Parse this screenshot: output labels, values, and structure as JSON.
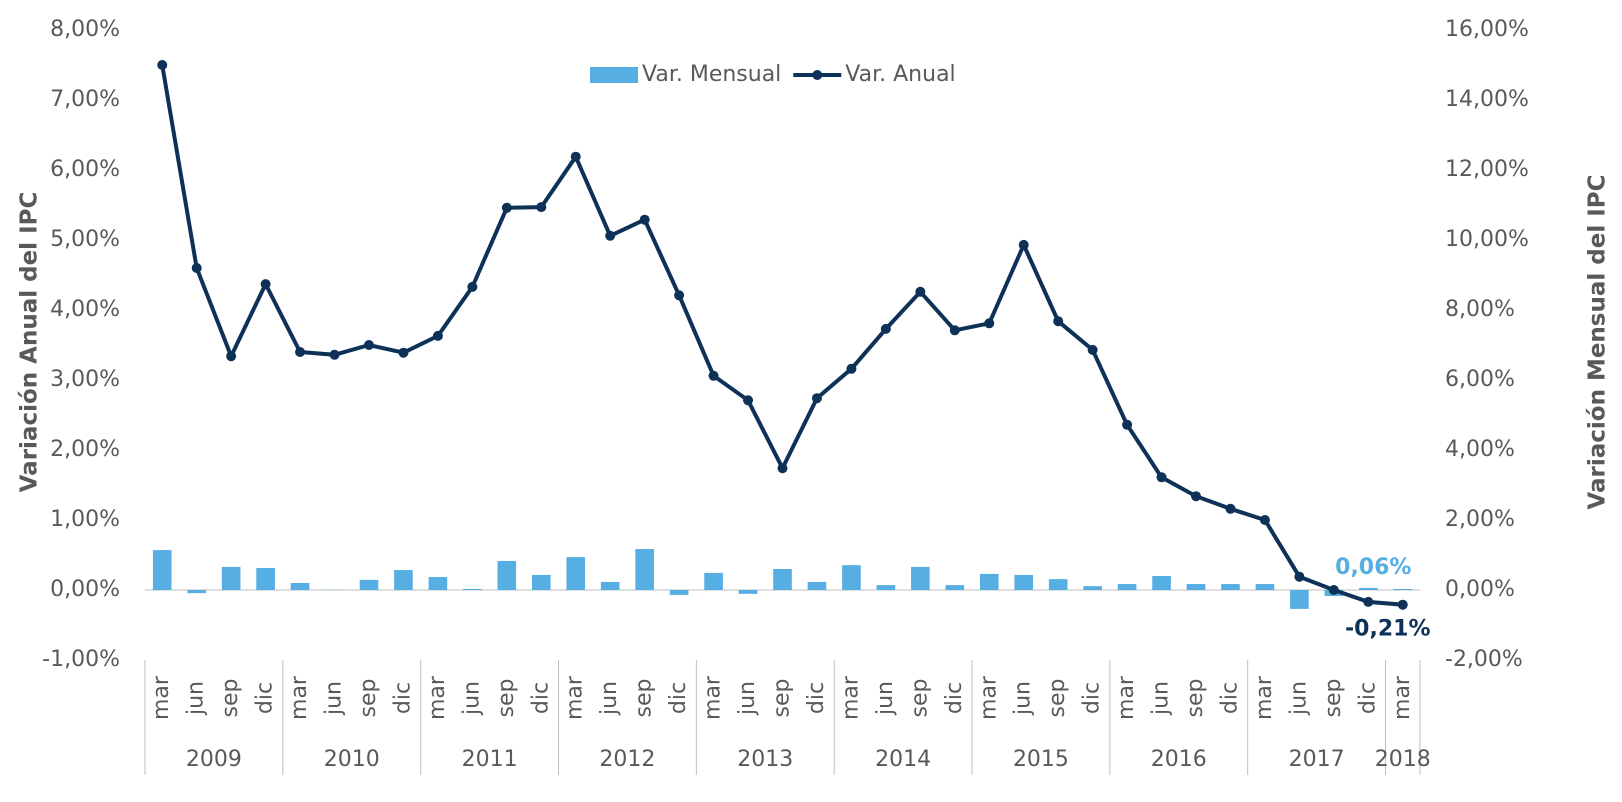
{
  "chart_data": {
    "type": "bar_line",
    "categories": [
      "mar",
      "jun",
      "sep",
      "dic",
      "mar",
      "jun",
      "sep",
      "dic",
      "mar",
      "jun",
      "sep",
      "dic",
      "mar",
      "jun",
      "sep",
      "dic",
      "mar",
      "jun",
      "sep",
      "dic",
      "mar",
      "jun",
      "sep",
      "dic",
      "mar",
      "jun",
      "sep",
      "dic",
      "mar",
      "jun",
      "sep",
      "dic",
      "mar",
      "jun",
      "sep",
      "dic",
      "mar"
    ],
    "year_groups": [
      "2009",
      "2010",
      "2011",
      "2012",
      "2013",
      "2014",
      "2015",
      "2016",
      "2017",
      "2018"
    ],
    "y_label": "Variación Anual del IPC",
    "y2_label": "Variación Mensual del IPC",
    "ylim": [
      -1,
      8
    ],
    "yticks": [
      {
        "value": -1,
        "label": "-1,00%"
      },
      {
        "value": 0,
        "label": "0,00%"
      },
      {
        "value": 1,
        "label": "1,00%"
      },
      {
        "value": 2,
        "label": "2,00%"
      },
      {
        "value": 3,
        "label": "3,00%"
      },
      {
        "value": 4,
        "label": "4,00%"
      },
      {
        "value": 5,
        "label": "5,00%"
      },
      {
        "value": 6,
        "label": "6,00%"
      },
      {
        "value": 7,
        "label": "7,00%"
      },
      {
        "value": 8,
        "label": "8,00%"
      }
    ],
    "y2lim": [
      -2,
      16
    ],
    "y2ticks": [
      {
        "value": -2,
        "label": "-2,00%"
      },
      {
        "value": 0,
        "label": "0,00%"
      },
      {
        "value": 2,
        "label": "2,00%"
      },
      {
        "value": 4,
        "label": "4,00%"
      },
      {
        "value": 6,
        "label": "6,00%"
      },
      {
        "value": 8,
        "label": "8,00%"
      },
      {
        "value": 10,
        "label": "10,00%"
      },
      {
        "value": 12,
        "label": "12,00%"
      },
      {
        "value": 14,
        "label": "14,00%"
      },
      {
        "value": 16,
        "label": "16,00%"
      }
    ],
    "legend": "top",
    "series": [
      {
        "name": "Var. Mensual",
        "type": "bar",
        "axis": "y2",
        "color": "#56aee3",
        "values": [
          1.14,
          -0.09,
          0.66,
          0.63,
          0.2,
          0.01,
          0.29,
          0.57,
          0.37,
          0.03,
          0.83,
          0.43,
          0.94,
          0.23,
          1.17,
          -0.14,
          0.49,
          -0.11,
          0.6,
          0.23,
          0.71,
          0.14,
          0.66,
          0.14,
          0.46,
          0.43,
          0.31,
          0.11,
          0.17,
          0.4,
          0.17,
          0.17,
          0.17,
          -0.54,
          -0.17,
          0.06,
          0.03
        ],
        "value_labels": [
          null,
          null,
          null,
          null,
          null,
          null,
          null,
          null,
          null,
          null,
          null,
          null,
          null,
          null,
          null,
          null,
          null,
          null,
          null,
          null,
          null,
          null,
          null,
          null,
          null,
          null,
          null,
          null,
          null,
          null,
          null,
          null,
          null,
          null,
          null,
          "0,06%",
          null
        ]
      },
      {
        "name": "Var. Anual",
        "type": "line",
        "axis": "y",
        "color": "#0d3157",
        "values": [
          7.5,
          4.6,
          3.34,
          4.37,
          3.4,
          3.36,
          3.5,
          3.39,
          3.63,
          4.33,
          5.46,
          5.47,
          6.19,
          5.06,
          5.29,
          4.21,
          3.06,
          2.71,
          1.74,
          2.74,
          3.16,
          3.73,
          4.26,
          3.71,
          3.81,
          4.93,
          3.84,
          3.43,
          2.36,
          1.61,
          1.34,
          1.16,
          1.0,
          0.19,
          0.0,
          -0.17,
          -0.21
        ],
        "value_labels": [
          null,
          null,
          null,
          null,
          null,
          null,
          null,
          null,
          null,
          null,
          null,
          null,
          null,
          null,
          null,
          null,
          null,
          null,
          null,
          null,
          null,
          null,
          null,
          null,
          null,
          null,
          null,
          null,
          null,
          null,
          null,
          null,
          null,
          null,
          null,
          null,
          "-0,21%"
        ]
      }
    ]
  }
}
